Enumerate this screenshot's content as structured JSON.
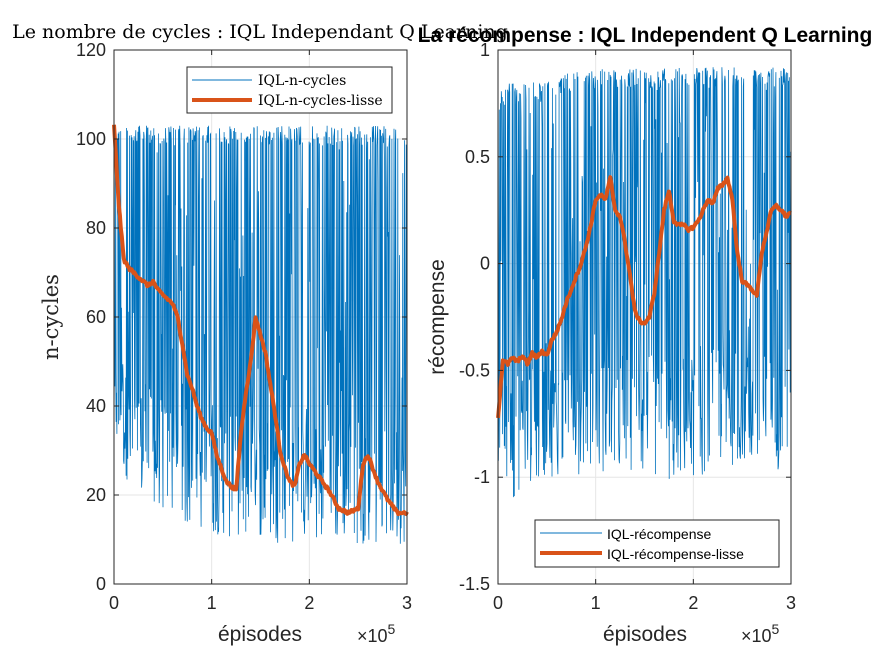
{
  "colors": {
    "raw": "#0072BD",
    "smooth": "#D95319",
    "grid": "#E6E6E6",
    "axis": "#262626"
  },
  "chart_data": [
    {
      "type": "line",
      "title": "Le nombre de cycles : IQL Independant Q Learning",
      "xlabel": "épisodes",
      "ylabel": "n-cycles",
      "x_multiplier": "×10^5",
      "xlim": [
        0,
        300000
      ],
      "ylim": [
        0,
        120
      ],
      "xticks": [
        0,
        100000,
        200000,
        300000
      ],
      "xtick_labels": [
        "0",
        "1",
        "2",
        "3"
      ],
      "yticks": [
        0,
        20,
        40,
        60,
        80,
        100,
        120
      ],
      "ytick_labels": [
        "0",
        "20",
        "40",
        "60",
        "80",
        "100",
        "120"
      ],
      "grid": true,
      "legend_position": "top-right",
      "series": [
        {
          "name": "IQL-n-cycles",
          "noisy": true,
          "x": [
            0,
            10000,
            20000,
            30000,
            40000,
            50000,
            60000,
            70000,
            80000,
            90000,
            100000,
            110000,
            120000,
            130000,
            140000,
            150000,
            160000,
            170000,
            180000,
            190000,
            200000,
            210000,
            220000,
            230000,
            240000,
            250000,
            260000,
            270000,
            280000,
            290000,
            300000
          ],
          "y_low": [
            30,
            25,
            20,
            18,
            16,
            15,
            14,
            13,
            12,
            12,
            11,
            11,
            10,
            10,
            10,
            10,
            10,
            9,
            9,
            9,
            9,
            9,
            9,
            9,
            9,
            9,
            9,
            9,
            9,
            9,
            9
          ],
          "y_high": [
            103,
            103,
            103,
            103,
            103,
            103,
            103,
            103,
            103,
            103,
            103,
            103,
            103,
            103,
            103,
            103,
            103,
            103,
            103,
            103,
            103,
            103,
            103,
            103,
            103,
            103,
            103,
            103,
            103,
            103,
            103
          ]
        },
        {
          "name": "IQL-n-cycles-lisse",
          "x": [
            0,
            5000,
            10000,
            15000,
            20000,
            25000,
            30000,
            35000,
            40000,
            45000,
            50000,
            55000,
            60000,
            65000,
            70000,
            75000,
            80000,
            85000,
            90000,
            95000,
            100000,
            105000,
            110000,
            115000,
            120000,
            125000,
            130000,
            135000,
            140000,
            145000,
            150000,
            155000,
            160000,
            165000,
            170000,
            175000,
            180000,
            185000,
            190000,
            195000,
            200000,
            210000,
            220000,
            230000,
            240000,
            250000,
            255000,
            260000,
            265000,
            270000,
            280000,
            290000,
            300000
          ],
          "y": [
            103,
            85,
            73,
            71,
            70,
            69,
            68,
            67,
            68,
            66,
            65,
            64,
            63,
            60,
            54,
            47,
            44,
            40,
            37,
            35,
            34,
            29,
            26,
            23,
            22,
            21,
            34,
            43,
            50,
            60,
            56,
            52,
            45,
            38,
            30,
            26,
            23,
            22,
            27,
            29,
            27,
            24,
            21,
            17,
            16,
            17,
            27,
            29,
            26,
            23,
            19,
            16,
            16
          ]
        }
      ]
    },
    {
      "type": "line",
      "title": "La récompense : IQL Independent Q Learning",
      "xlabel": "épisodes",
      "ylabel": "récompense",
      "x_multiplier": "×10^5",
      "xlim": [
        0,
        300000
      ],
      "ylim": [
        -1.5,
        1
      ],
      "xticks": [
        0,
        100000,
        200000,
        300000
      ],
      "xtick_labels": [
        "0",
        "1",
        "2",
        "3"
      ],
      "yticks": [
        -1.5,
        -1,
        -0.5,
        0,
        0.5,
        1
      ],
      "ytick_labels": [
        "-1.5",
        "-1",
        "-0.5",
        "0",
        "0.5",
        "1"
      ],
      "grid": true,
      "legend_position": "bottom-right",
      "series": [
        {
          "name": "IQL-récompense",
          "noisy": true,
          "x": [
            0,
            10000,
            20000,
            30000,
            40000,
            50000,
            60000,
            70000,
            80000,
            90000,
            100000,
            110000,
            120000,
            130000,
            140000,
            150000,
            160000,
            170000,
            180000,
            190000,
            200000,
            210000,
            220000,
            230000,
            240000,
            250000,
            260000,
            270000,
            280000,
            290000,
            300000
          ],
          "y_low": [
            -1.0,
            -1.1,
            -1.1,
            -1.05,
            -1.05,
            -1.0,
            -1.0,
            -0.95,
            -1.0,
            -0.95,
            -1.0,
            -1.0,
            -1.05,
            -0.95,
            -1.0,
            -1.0,
            -1.0,
            -1.0,
            -1.05,
            -1.0,
            -1.0,
            -1.0,
            -0.95,
            -0.95,
            -0.95,
            -0.95,
            -1.0,
            -1.0,
            -1.0,
            -0.95,
            -0.95
          ],
          "y_high": [
            0.8,
            0.85,
            0.85,
            0.85,
            0.85,
            0.85,
            0.87,
            0.9,
            0.9,
            0.9,
            0.9,
            0.92,
            0.92,
            0.92,
            0.92,
            0.92,
            0.9,
            0.92,
            0.95,
            0.93,
            0.93,
            0.93,
            0.92,
            0.92,
            0.92,
            0.92,
            0.92,
            0.92,
            0.92,
            0.92,
            0.92
          ]
        },
        {
          "name": "IQL-récompense-lisse",
          "x": [
            0,
            5000,
            10000,
            15000,
            20000,
            25000,
            30000,
            35000,
            40000,
            45000,
            50000,
            55000,
            60000,
            65000,
            70000,
            75000,
            80000,
            85000,
            90000,
            95000,
            100000,
            105000,
            110000,
            115000,
            120000,
            125000,
            130000,
            135000,
            140000,
            145000,
            150000,
            155000,
            160000,
            165000,
            170000,
            175000,
            180000,
            185000,
            190000,
            195000,
            200000,
            205000,
            210000,
            215000,
            220000,
            225000,
            230000,
            235000,
            240000,
            245000,
            250000,
            255000,
            260000,
            265000,
            270000,
            275000,
            280000,
            285000,
            290000,
            295000,
            300000
          ],
          "y": [
            -0.72,
            -0.45,
            -0.47,
            -0.44,
            -0.46,
            -0.43,
            -0.47,
            -0.42,
            -0.44,
            -0.41,
            -0.43,
            -0.36,
            -0.32,
            -0.26,
            -0.18,
            -0.12,
            -0.06,
            0.0,
            0.08,
            0.18,
            0.3,
            0.32,
            0.3,
            0.4,
            0.25,
            0.22,
            0.1,
            -0.05,
            -0.22,
            -0.27,
            -0.28,
            -0.25,
            -0.14,
            0.05,
            0.25,
            0.34,
            0.2,
            0.18,
            0.18,
            0.16,
            0.17,
            0.2,
            0.25,
            0.3,
            0.28,
            0.35,
            0.37,
            0.4,
            0.3,
            0.05,
            -0.08,
            -0.1,
            -0.12,
            -0.15,
            0.05,
            0.15,
            0.25,
            0.27,
            0.25,
            0.22,
            0.24
          ]
        }
      ]
    }
  ]
}
